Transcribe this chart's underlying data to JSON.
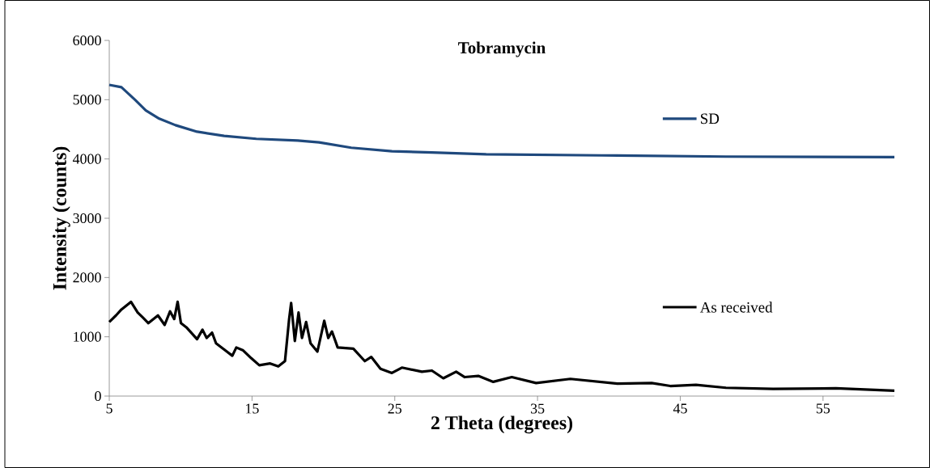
{
  "chart_data": {
    "type": "line",
    "title": "Tobramycin",
    "xlabel": "2 Theta (degrees)",
    "ylabel": "Intensity (counts)",
    "xlim": [
      5,
      60
    ],
    "xticks": [
      5,
      15,
      25,
      35,
      45,
      55
    ],
    "ylim": [
      0,
      6000
    ],
    "yticks": [
      0,
      1000,
      2000,
      3000,
      4000,
      5000,
      6000
    ],
    "grid": false,
    "legend": "right",
    "marker": "none",
    "line_style": "solid",
    "series": [
      {
        "name": "SD",
        "color": "#1f497d",
        "x": [
          5,
          5.85,
          6.8,
          7.56,
          8.5,
          9.64,
          11.15,
          13.05,
          15.3,
          18.2,
          19.7,
          21.95,
          24.8,
          27.6,
          31.4,
          39.5,
          48.2,
          60
        ],
        "values": [
          5250,
          5210,
          5000,
          4820,
          4680,
          4570,
          4460,
          4390,
          4340,
          4310,
          4280,
          4190,
          4130,
          4110,
          4080,
          4060,
          4040,
          4030
        ]
      },
      {
        "name": "As received",
        "color": "#000000",
        "x": [
          5,
          5.47,
          5.85,
          6.52,
          6.99,
          7.37,
          7.74,
          8.41,
          8.88,
          9.26,
          9.55,
          9.79,
          10.02,
          10.4,
          11.15,
          11.53,
          11.82,
          12.2,
          12.48,
          13.24,
          13.62,
          13.9,
          14.38,
          14.94,
          15.51,
          16.27,
          16.84,
          17.31,
          17.6,
          17.74,
          18.0,
          18.26,
          18.5,
          18.79,
          19.1,
          19.58,
          20.06,
          20.34,
          20.6,
          21.0,
          22.1,
          22.9,
          23.35,
          24.0,
          24.8,
          25.5,
          26.9,
          27.6,
          28.4,
          29.3,
          29.9,
          30.85,
          31.9,
          33.2,
          34.9,
          37.3,
          40.6,
          43.0,
          44.3,
          46.1,
          48.2,
          51.5,
          55.9,
          60
        ],
        "values": [
          1250,
          1360,
          1460,
          1590,
          1410,
          1320,
          1230,
          1360,
          1200,
          1430,
          1300,
          1590,
          1230,
          1160,
          960,
          1120,
          980,
          1070,
          890,
          750,
          680,
          820,
          770,
          640,
          520,
          550,
          500,
          590,
          1300,
          1570,
          930,
          1410,
          980,
          1250,
          890,
          750,
          1270,
          980,
          1090,
          820,
          800,
          590,
          660,
          460,
          390,
          480,
          410,
          430,
          300,
          410,
          320,
          340,
          240,
          320,
          220,
          290,
          210,
          220,
          170,
          190,
          140,
          120,
          130,
          90
        ]
      }
    ]
  }
}
